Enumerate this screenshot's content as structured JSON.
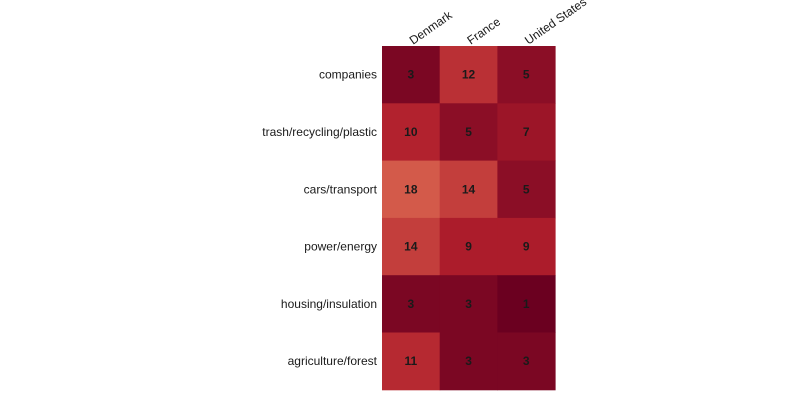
{
  "chart_data": {
    "type": "heatmap",
    "columns": [
      "Denmark",
      "France",
      "United States"
    ],
    "rows": [
      "companies",
      "trash/recycling/plastic",
      "cars/transport",
      "power/energy",
      "housing/insulation",
      "agriculture/forest"
    ],
    "values": [
      [
        3,
        12,
        5
      ],
      [
        10,
        5,
        7
      ],
      [
        18,
        14,
        5
      ],
      [
        14,
        9,
        9
      ],
      [
        3,
        3,
        1
      ],
      [
        11,
        3,
        3
      ]
    ],
    "value_range": [
      1,
      18
    ],
    "colormap": {
      "low": "#6b0020",
      "mid": "#b01e2c",
      "high": "#d35a4a"
    },
    "legend": "none",
    "grid": false
  }
}
